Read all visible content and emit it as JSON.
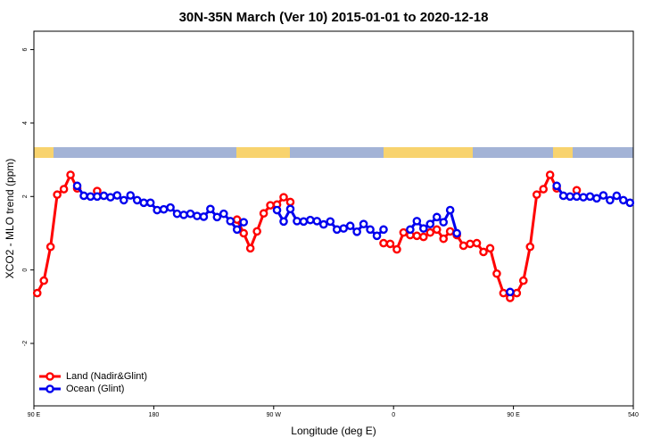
{
  "chart_data": {
    "type": "line",
    "title": "30N-35N March (Ver 10)   2015-01-01 to 2020-12-18",
    "x_label": "Longitude (deg E)",
    "y_label": "XCO2 - MLO trend (ppm)",
    "xlim": [
      90,
      540
    ],
    "xticks": [
      {
        "value": 90,
        "label": "90 E"
      },
      180,
      {
        "value": 270,
        "label": "90 W"
      },
      {
        "value": 360,
        "label": "0"
      },
      {
        "value": 450,
        "label": "90 E"
      },
      540
    ],
    "ylim": [
      -3.7,
      6.5
    ],
    "yticks": [
      -2,
      0,
      2,
      4,
      6
    ],
    "legend": "bottom-left",
    "x": [
      92.5,
      97.5,
      102.5,
      107.5,
      112.5,
      117.5,
      122.5,
      127.5,
      132.5,
      137.5,
      142.5,
      147.5,
      152.5,
      157.5,
      162.5,
      167.5,
      172.5,
      177.5,
      182.5,
      187.5,
      192.5,
      197.5,
      202.5,
      207.5,
      212.5,
      217.5,
      222.5,
      227.5,
      232.5,
      237.5,
      242.5,
      247.5,
      252.5,
      257.5,
      262.5,
      267.5,
      272.5,
      277.5,
      282.5,
      287.5,
      292.5,
      297.5,
      302.5,
      307.5,
      312.5,
      317.5,
      322.5,
      327.5,
      332.5,
      337.5,
      342.5,
      347.5,
      352.5,
      357.5,
      362.5,
      367.5,
      372.5,
      377.5,
      382.5,
      387.5,
      392.5,
      397.5,
      402.5,
      407.5,
      412.5,
      417.5,
      422.5,
      427.5,
      432.5,
      437.5,
      442.5,
      447.5,
      452.5,
      457.5,
      462.5,
      467.5,
      472.5,
      477.5,
      482.5,
      487.5,
      492.5,
      497.5,
      502.5,
      507.5,
      512.5,
      517.5,
      522.5,
      527.5,
      532.5,
      537.5
    ],
    "series": [
      {
        "name": "Land (Nadir&Glint)",
        "color": "#ff0000",
        "values": [
          -0.63,
          -0.29,
          0.63,
          2.05,
          2.2,
          2.59,
          2.22,
          null,
          null,
          2.15,
          null,
          null,
          null,
          null,
          null,
          null,
          null,
          null,
          null,
          null,
          null,
          null,
          null,
          null,
          null,
          null,
          null,
          null,
          null,
          null,
          1.37,
          1.0,
          0.59,
          1.05,
          1.54,
          1.76,
          1.78,
          1.98,
          1.85,
          null,
          null,
          null,
          null,
          null,
          null,
          null,
          null,
          null,
          null,
          null,
          null,
          null,
          0.73,
          0.71,
          0.56,
          1.02,
          0.95,
          0.93,
          0.9,
          1.02,
          1.1,
          0.85,
          1.05,
          0.95,
          0.66,
          0.71,
          0.73,
          0.49,
          0.59,
          -0.1,
          -0.63,
          -0.76,
          -0.63,
          -0.29,
          0.63,
          2.05,
          2.2,
          2.59,
          2.22,
          null,
          null,
          2.17,
          null,
          null,
          null,
          null,
          null,
          null,
          null,
          null
        ]
      },
      {
        "name": "Ocean (Glint)",
        "color": "#0000ee",
        "values": [
          null,
          null,
          null,
          null,
          null,
          null,
          2.29,
          2.02,
          2.0,
          2.0,
          2.02,
          1.98,
          2.03,
          1.9,
          2.03,
          1.9,
          1.83,
          1.83,
          1.63,
          1.65,
          1.7,
          1.53,
          1.5,
          1.53,
          1.47,
          1.45,
          1.66,
          1.44,
          1.53,
          1.33,
          1.1,
          1.3,
          null,
          null,
          null,
          null,
          1.63,
          1.32,
          1.66,
          1.33,
          1.32,
          1.36,
          1.33,
          1.24,
          1.32,
          1.1,
          1.13,
          1.2,
          1.04,
          1.25,
          1.1,
          0.93,
          1.1,
          null,
          null,
          null,
          1.1,
          1.33,
          1.13,
          1.25,
          1.44,
          1.3,
          1.63,
          1.0,
          null,
          null,
          null,
          null,
          null,
          null,
          null,
          -0.6,
          null,
          null,
          null,
          null,
          null,
          null,
          2.29,
          2.02,
          2.0,
          2.0,
          1.98,
          2.0,
          1.95,
          2.03,
          1.9,
          2.02,
          1.9,
          1.83
        ]
      }
    ]
  }
}
